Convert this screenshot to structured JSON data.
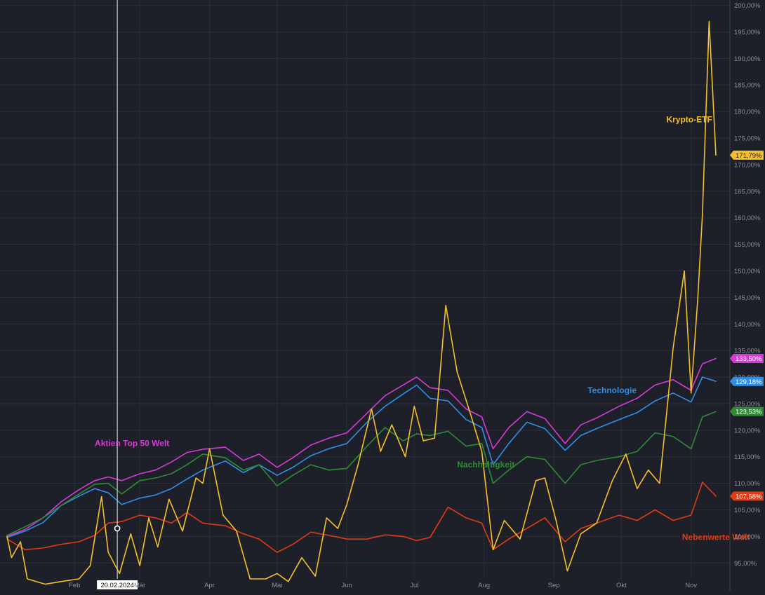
{
  "chart_data": {
    "type": "line",
    "y_unit_format": "percent_de",
    "ylim": [
      92,
      201
    ],
    "y_ticks": [
      "95,00%",
      "100,00%",
      "105,00%",
      "110,00%",
      "115,00%",
      "120,00%",
      "125,00%",
      "130,00%",
      "135,00%",
      "140,00%",
      "145,00%",
      "150,00%",
      "155,00%",
      "160,00%",
      "165,00%",
      "170,00%",
      "175,00%",
      "180,00%",
      "185,00%",
      "190,00%",
      "195,00%",
      "200,00%"
    ],
    "x_range": [
      "2024-01-02",
      "2024-11-12"
    ],
    "x_ticks": [
      {
        "date": "2024-02-01",
        "label": "Feb"
      },
      {
        "date": "2024-03-01",
        "label": "Mär"
      },
      {
        "date": "2024-04-01",
        "label": "Apr"
      },
      {
        "date": "2024-05-01",
        "label": "Mai"
      },
      {
        "date": "2024-06-01",
        "label": "Jun"
      },
      {
        "date": "2024-07-01",
        "label": "Jul"
      },
      {
        "date": "2024-08-01",
        "label": "Aug"
      },
      {
        "date": "2024-09-01",
        "label": "Sep"
      },
      {
        "date": "2024-10-01",
        "label": "Okt"
      },
      {
        "date": "2024-11-01",
        "label": "Nov"
      }
    ],
    "grid": true,
    "crosshair": {
      "date": "2024-02-20",
      "label": "20.02.2024",
      "marker_value": 101.5
    },
    "series": [
      {
        "name": "Aktien Top 50 Welt",
        "color": "#d63ad6",
        "last_label": "133,50%",
        "points": [
          [
            "2024-01-02",
            100.0
          ],
          [
            "2024-01-10",
            101.3
          ],
          [
            "2024-01-18",
            103.5
          ],
          [
            "2024-01-26",
            106.5
          ],
          [
            "2024-02-03",
            108.8
          ],
          [
            "2024-02-10",
            110.5
          ],
          [
            "2024-02-16",
            111.2
          ],
          [
            "2024-02-22",
            110.5
          ],
          [
            "2024-03-01",
            111.8
          ],
          [
            "2024-03-08",
            112.5
          ],
          [
            "2024-03-15",
            114.0
          ],
          [
            "2024-03-22",
            115.8
          ],
          [
            "2024-03-29",
            116.4
          ],
          [
            "2024-04-08",
            116.8
          ],
          [
            "2024-04-16",
            114.3
          ],
          [
            "2024-04-23",
            115.5
          ],
          [
            "2024-05-01",
            113.0
          ],
          [
            "2024-05-08",
            114.8
          ],
          [
            "2024-05-16",
            117.2
          ],
          [
            "2024-05-24",
            118.5
          ],
          [
            "2024-06-01",
            119.5
          ],
          [
            "2024-06-10",
            123.2
          ],
          [
            "2024-06-18",
            126.5
          ],
          [
            "2024-06-26",
            128.5
          ],
          [
            "2024-07-02",
            130.0
          ],
          [
            "2024-07-08",
            128.0
          ],
          [
            "2024-07-16",
            127.5
          ],
          [
            "2024-07-24",
            124.0
          ],
          [
            "2024-07-31",
            122.5
          ],
          [
            "2024-08-05",
            116.5
          ],
          [
            "2024-08-12",
            120.5
          ],
          [
            "2024-08-20",
            123.5
          ],
          [
            "2024-08-28",
            122.2
          ],
          [
            "2024-09-06",
            117.5
          ],
          [
            "2024-09-13",
            121.0
          ],
          [
            "2024-09-20",
            122.3
          ],
          [
            "2024-09-30",
            124.5
          ],
          [
            "2024-10-08",
            126.0
          ],
          [
            "2024-10-16",
            128.5
          ],
          [
            "2024-10-24",
            129.5
          ],
          [
            "2024-11-01",
            127.5
          ],
          [
            "2024-11-06",
            132.5
          ],
          [
            "2024-11-12",
            133.5
          ]
        ]
      },
      {
        "name": "Technologie",
        "color": "#2f8fe8",
        "last_label": "129,18%",
        "points": [
          [
            "2024-01-02",
            99.8
          ],
          [
            "2024-01-10",
            101.0
          ],
          [
            "2024-01-18",
            102.6
          ],
          [
            "2024-01-26",
            105.8
          ],
          [
            "2024-02-03",
            107.6
          ],
          [
            "2024-02-10",
            109.0
          ],
          [
            "2024-02-16",
            108.2
          ],
          [
            "2024-02-22",
            106.0
          ],
          [
            "2024-03-01",
            107.2
          ],
          [
            "2024-03-08",
            107.8
          ],
          [
            "2024-03-15",
            109.0
          ],
          [
            "2024-03-22",
            110.8
          ],
          [
            "2024-03-29",
            112.5
          ],
          [
            "2024-04-08",
            114.2
          ],
          [
            "2024-04-16",
            112.0
          ],
          [
            "2024-04-23",
            113.5
          ],
          [
            "2024-05-01",
            111.5
          ],
          [
            "2024-05-08",
            113.0
          ],
          [
            "2024-05-16",
            115.2
          ],
          [
            "2024-05-24",
            116.5
          ],
          [
            "2024-06-01",
            117.5
          ],
          [
            "2024-06-10",
            121.5
          ],
          [
            "2024-06-18",
            124.5
          ],
          [
            "2024-06-26",
            126.8
          ],
          [
            "2024-07-02",
            128.5
          ],
          [
            "2024-07-08",
            126.0
          ],
          [
            "2024-07-16",
            125.5
          ],
          [
            "2024-07-24",
            122.0
          ],
          [
            "2024-07-31",
            120.5
          ],
          [
            "2024-08-05",
            113.5
          ],
          [
            "2024-08-12",
            117.5
          ],
          [
            "2024-08-20",
            121.5
          ],
          [
            "2024-08-28",
            120.3
          ],
          [
            "2024-09-06",
            116.2
          ],
          [
            "2024-09-13",
            119.0
          ],
          [
            "2024-09-20",
            120.3
          ],
          [
            "2024-09-30",
            122.0
          ],
          [
            "2024-10-08",
            123.3
          ],
          [
            "2024-10-16",
            125.5
          ],
          [
            "2024-10-24",
            127.0
          ],
          [
            "2024-11-01",
            125.3
          ],
          [
            "2024-11-06",
            130.0
          ],
          [
            "2024-11-12",
            129.2
          ]
        ]
      },
      {
        "name": "Nachhaltigkeit",
        "color": "#2f8a36",
        "last_label": "123,53%",
        "points": [
          [
            "2024-01-02",
            100.2
          ],
          [
            "2024-01-10",
            101.8
          ],
          [
            "2024-01-18",
            103.5
          ],
          [
            "2024-01-26",
            105.8
          ],
          [
            "2024-02-03",
            108.0
          ],
          [
            "2024-02-10",
            109.8
          ],
          [
            "2024-02-16",
            110.0
          ],
          [
            "2024-02-22",
            108.0
          ],
          [
            "2024-03-01",
            110.5
          ],
          [
            "2024-03-08",
            111.0
          ],
          [
            "2024-03-15",
            111.8
          ],
          [
            "2024-03-22",
            113.5
          ],
          [
            "2024-03-29",
            115.5
          ],
          [
            "2024-04-08",
            114.8
          ],
          [
            "2024-04-16",
            112.5
          ],
          [
            "2024-04-23",
            113.5
          ],
          [
            "2024-05-01",
            109.5
          ],
          [
            "2024-05-08",
            111.5
          ],
          [
            "2024-05-16",
            113.5
          ],
          [
            "2024-05-24",
            112.5
          ],
          [
            "2024-06-01",
            112.8
          ],
          [
            "2024-06-10",
            117.0
          ],
          [
            "2024-06-18",
            120.5
          ],
          [
            "2024-06-26",
            118.0
          ],
          [
            "2024-07-02",
            119.3
          ],
          [
            "2024-07-08",
            119.0
          ],
          [
            "2024-07-16",
            119.8
          ],
          [
            "2024-07-24",
            117.0
          ],
          [
            "2024-07-31",
            117.5
          ],
          [
            "2024-08-05",
            110.0
          ],
          [
            "2024-08-12",
            112.5
          ],
          [
            "2024-08-20",
            115.0
          ],
          [
            "2024-08-28",
            114.5
          ],
          [
            "2024-09-06",
            110.0
          ],
          [
            "2024-09-13",
            113.5
          ],
          [
            "2024-09-20",
            114.3
          ],
          [
            "2024-09-30",
            115.0
          ],
          [
            "2024-10-08",
            116.0
          ],
          [
            "2024-10-16",
            119.5
          ],
          [
            "2024-10-24",
            118.8
          ],
          [
            "2024-11-01",
            116.5
          ],
          [
            "2024-11-06",
            122.5
          ],
          [
            "2024-11-12",
            123.5
          ]
        ]
      },
      {
        "name": "Nebenwerte Welt",
        "color": "#e03a12",
        "last_label": "107,58%",
        "points": [
          [
            "2024-01-02",
            99.5
          ],
          [
            "2024-01-10",
            97.5
          ],
          [
            "2024-01-18",
            97.8
          ],
          [
            "2024-01-26",
            98.5
          ],
          [
            "2024-02-03",
            99.0
          ],
          [
            "2024-02-10",
            100.2
          ],
          [
            "2024-02-16",
            102.5
          ],
          [
            "2024-02-22",
            102.8
          ],
          [
            "2024-03-01",
            104.0
          ],
          [
            "2024-03-08",
            103.5
          ],
          [
            "2024-03-15",
            102.5
          ],
          [
            "2024-03-22",
            104.5
          ],
          [
            "2024-03-29",
            102.5
          ],
          [
            "2024-04-08",
            102.0
          ],
          [
            "2024-04-16",
            100.5
          ],
          [
            "2024-04-23",
            99.5
          ],
          [
            "2024-05-01",
            97.0
          ],
          [
            "2024-05-08",
            98.5
          ],
          [
            "2024-05-16",
            100.8
          ],
          [
            "2024-05-24",
            100.2
          ],
          [
            "2024-06-01",
            99.5
          ],
          [
            "2024-06-10",
            99.5
          ],
          [
            "2024-06-18",
            100.3
          ],
          [
            "2024-06-26",
            100.0
          ],
          [
            "2024-07-02",
            99.2
          ],
          [
            "2024-07-08",
            99.8
          ],
          [
            "2024-07-16",
            105.5
          ],
          [
            "2024-07-24",
            103.5
          ],
          [
            "2024-07-31",
            102.5
          ],
          [
            "2024-08-05",
            97.5
          ],
          [
            "2024-08-12",
            99.5
          ],
          [
            "2024-08-20",
            101.5
          ],
          [
            "2024-08-28",
            103.5
          ],
          [
            "2024-09-06",
            99.0
          ],
          [
            "2024-09-13",
            101.5
          ],
          [
            "2024-09-20",
            102.5
          ],
          [
            "2024-09-30",
            104.0
          ],
          [
            "2024-10-08",
            103.0
          ],
          [
            "2024-10-16",
            105.0
          ],
          [
            "2024-10-24",
            103.0
          ],
          [
            "2024-11-01",
            104.0
          ],
          [
            "2024-11-06",
            110.2
          ],
          [
            "2024-11-12",
            107.6
          ]
        ]
      },
      {
        "name": "Krypto-ETF",
        "color": "#f5c027",
        "last_label": "171,79%",
        "points": [
          [
            "2024-01-02",
            100.0
          ],
          [
            "2024-01-04",
            96.0
          ],
          [
            "2024-01-08",
            99.0
          ],
          [
            "2024-01-11",
            92.0
          ],
          [
            "2024-01-19",
            91.0
          ],
          [
            "2024-01-26",
            91.5
          ],
          [
            "2024-02-03",
            92.0
          ],
          [
            "2024-02-08",
            94.5
          ],
          [
            "2024-02-13",
            107.5
          ],
          [
            "2024-02-16",
            97.0
          ],
          [
            "2024-02-21",
            93.0
          ],
          [
            "2024-02-26",
            100.5
          ],
          [
            "2024-03-01",
            94.5
          ],
          [
            "2024-03-05",
            103.5
          ],
          [
            "2024-03-09",
            98.0
          ],
          [
            "2024-03-14",
            107.0
          ],
          [
            "2024-03-20",
            101.0
          ],
          [
            "2024-03-26",
            111.0
          ],
          [
            "2024-03-29",
            110.0
          ],
          [
            "2024-04-01",
            116.5
          ],
          [
            "2024-04-07",
            104.0
          ],
          [
            "2024-04-13",
            101.0
          ],
          [
            "2024-04-19",
            92.0
          ],
          [
            "2024-04-26",
            92.0
          ],
          [
            "2024-05-01",
            93.0
          ],
          [
            "2024-05-06",
            91.5
          ],
          [
            "2024-05-12",
            96.0
          ],
          [
            "2024-05-18",
            92.5
          ],
          [
            "2024-05-23",
            103.5
          ],
          [
            "2024-05-28",
            101.5
          ],
          [
            "2024-06-01",
            106.0
          ],
          [
            "2024-06-06",
            113.5
          ],
          [
            "2024-06-12",
            124.0
          ],
          [
            "2024-06-16",
            116.0
          ],
          [
            "2024-06-21",
            121.0
          ],
          [
            "2024-06-27",
            115.0
          ],
          [
            "2024-07-01",
            124.5
          ],
          [
            "2024-07-05",
            118.0
          ],
          [
            "2024-07-10",
            118.5
          ],
          [
            "2024-07-15",
            143.5
          ],
          [
            "2024-07-20",
            131.0
          ],
          [
            "2024-07-26",
            123.0
          ],
          [
            "2024-07-31",
            116.0
          ],
          [
            "2024-08-05",
            97.5
          ],
          [
            "2024-08-10",
            103.0
          ],
          [
            "2024-08-17",
            99.5
          ],
          [
            "2024-08-24",
            110.5
          ],
          [
            "2024-08-28",
            111.0
          ],
          [
            "2024-09-02",
            103.0
          ],
          [
            "2024-09-07",
            93.5
          ],
          [
            "2024-09-13",
            100.5
          ],
          [
            "2024-09-20",
            102.5
          ],
          [
            "2024-09-27",
            110.5
          ],
          [
            "2024-10-03",
            115.5
          ],
          [
            "2024-10-08",
            109.0
          ],
          [
            "2024-10-13",
            112.5
          ],
          [
            "2024-10-18",
            110.0
          ],
          [
            "2024-10-24",
            135.5
          ],
          [
            "2024-10-29",
            150.0
          ],
          [
            "2024-11-01",
            127.0
          ],
          [
            "2024-11-04",
            145.0
          ],
          [
            "2024-11-06",
            160.5
          ],
          [
            "2024-11-09",
            197.0
          ],
          [
            "2024-11-12",
            171.8
          ]
        ]
      }
    ],
    "annotations": [
      {
        "text": "Krypto-ETF",
        "series": "Krypto-ETF",
        "date": "2024-10-21",
        "value": 178.0
      },
      {
        "text": "Technologie",
        "series": "Technologie",
        "date": "2024-09-16",
        "value": 127.0
      },
      {
        "text": "Aktien Top 50 Welt",
        "series": "Aktien Top 50 Welt",
        "date": "2024-02-10",
        "value": 117.0
      },
      {
        "text": "Nachhaltigkeit",
        "series": "Nachhaltigkeit",
        "date": "2024-07-20",
        "value": 113.0
      },
      {
        "text": "Nebenwerte Welt",
        "series": "Nebenwerte Welt",
        "date": "2024-10-28",
        "value": 99.3
      }
    ]
  }
}
